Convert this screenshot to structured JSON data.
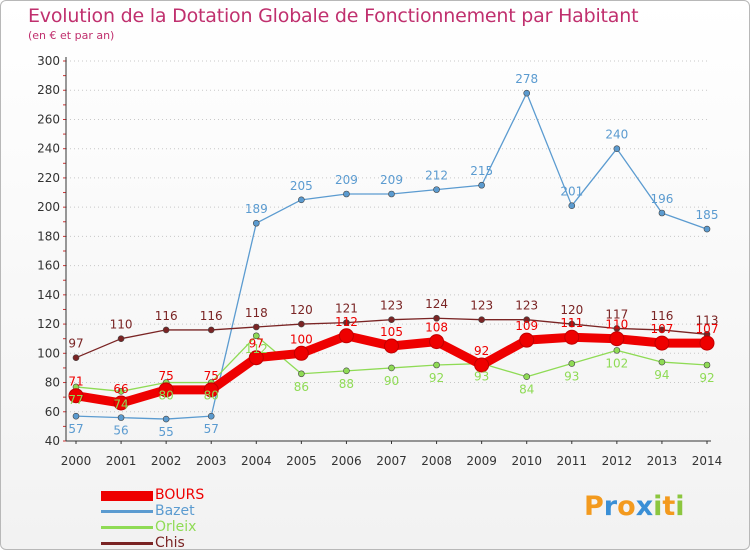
{
  "chart_data": {
    "type": "line",
    "title": "Evolution de la Dotation Globale de Fonctionnement par Habitant",
    "subtitle": "(en € et par an)",
    "x": [
      "2000",
      "2001",
      "2002",
      "2003",
      "2004",
      "2005",
      "2006",
      "2007",
      "2008",
      "2009",
      "2010",
      "2011",
      "2012",
      "2013",
      "2014"
    ],
    "yticks": [
      "40",
      "60",
      "80",
      "100",
      "120",
      "140",
      "160",
      "180",
      "200",
      "220",
      "240",
      "260",
      "280",
      "300"
    ],
    "ylim": [
      40,
      300
    ],
    "grid": "horizontal dotted",
    "series": [
      {
        "name": "Bazet",
        "color": "#5b9bd0",
        "values": [
          57,
          56,
          55,
          57,
          189,
          205,
          209,
          209,
          212,
          215,
          278,
          201,
          240,
          196,
          185
        ],
        "labels": [
          "57",
          "56",
          "55",
          "57",
          "189",
          "205",
          "209",
          "209",
          "212",
          "215",
          "278",
          "201",
          "240",
          "196",
          "185"
        ]
      },
      {
        "name": "Orleix",
        "color": "#8fdb55",
        "values": [
          77,
          74,
          80,
          80,
          112,
          86,
          88,
          90,
          92,
          93,
          84,
          93,
          102,
          94,
          92
        ],
        "labels": [
          "77",
          "74",
          "80",
          "80",
          "112",
          "86",
          "88",
          "90",
          "92",
          "93",
          "84",
          "93",
          "102",
          "94",
          "92"
        ]
      },
      {
        "name": "Chis",
        "color": "#7a2424",
        "values": [
          97,
          110,
          116,
          116,
          118,
          120,
          121,
          123,
          124,
          123,
          123,
          120,
          117,
          116,
          113
        ],
        "labels": [
          "97",
          "110",
          "116",
          "116",
          "118",
          "120",
          "121",
          "123",
          "124",
          "123",
          "123",
          "120",
          "117",
          "116",
          "113"
        ]
      },
      {
        "name": "BOURS",
        "color": "#ee0000",
        "values": [
          71,
          66,
          75,
          75,
          97,
          100,
          112,
          105,
          108,
          92,
          109,
          111,
          110,
          107,
          107
        ],
        "labels": [
          "71",
          "66",
          "75",
          "75",
          "97",
          "100",
          "112",
          "105",
          "108",
          "92",
          "109",
          "111",
          "110",
          "107",
          "107"
        ]
      }
    ],
    "legend": [
      "BOURS",
      "Bazet",
      "Orleix",
      "Chis"
    ],
    "legend_placement": "bottom-left"
  },
  "logo": {
    "text": "Proxiti",
    "letters": [
      "P",
      "r",
      "o",
      "x",
      "i",
      "t",
      "i"
    ],
    "colors": [
      "#f39a1e",
      "#3a8fd6",
      "#f39a1e",
      "#3a8fd6",
      "#8cc63f",
      "#f39a1e",
      "#8cc63f"
    ]
  }
}
